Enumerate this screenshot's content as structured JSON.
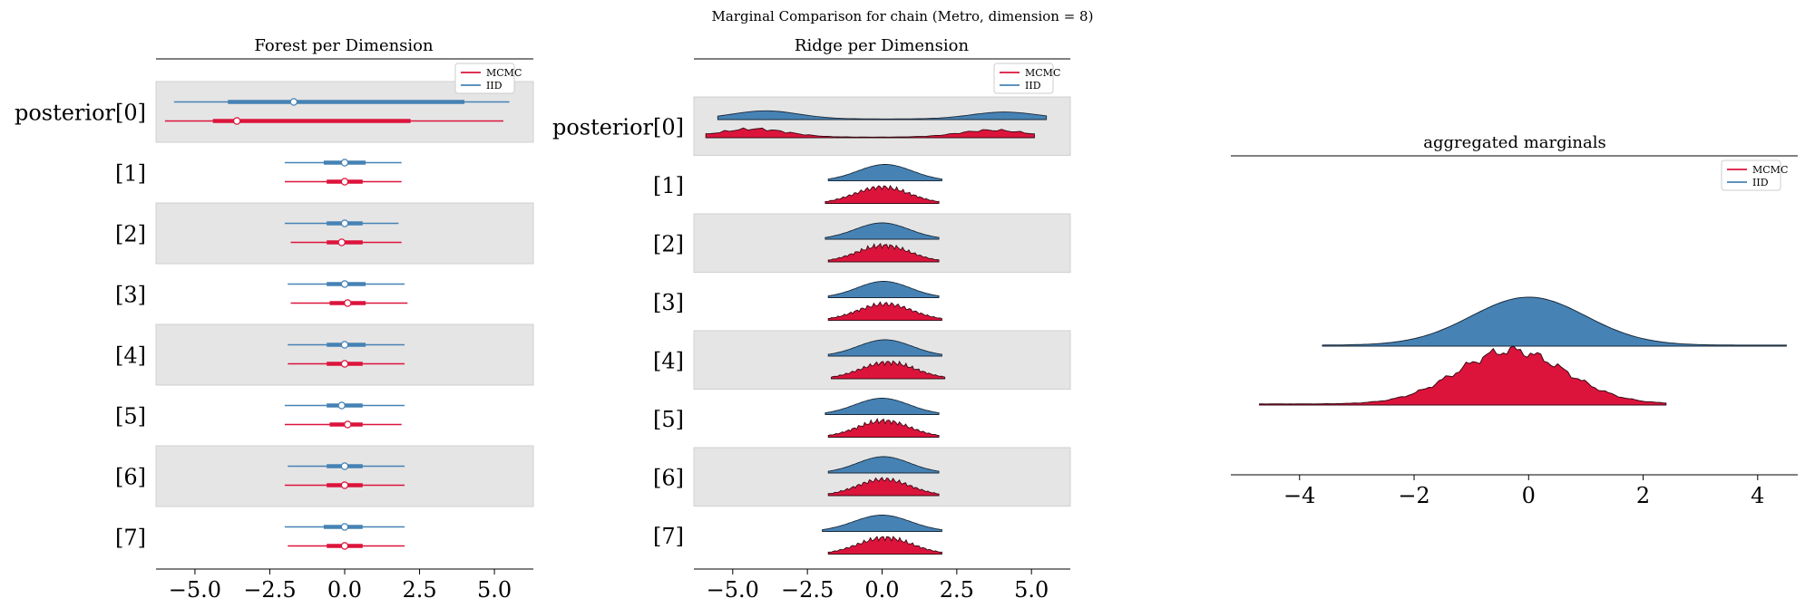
{
  "suptitle": "Marginal Comparison for chain (Metro, dimension = 8)",
  "colors": {
    "mcmc": "#dc143c",
    "iid": "#4682b4",
    "band": "#e5e5e5"
  },
  "legend": {
    "mcmc_label": "MCMC",
    "iid_label": "IID"
  },
  "chart_data": [
    {
      "type": "forest",
      "title": "Forest per Dimension",
      "xlim": [
        -6.3,
        6.3
      ],
      "xticks": [
        -5.0,
        -2.5,
        0.0,
        2.5,
        5.0
      ],
      "xtick_labels": [
        "−5.0",
        "−2.5",
        "0.0",
        "2.5",
        "5.0"
      ],
      "row_labels": [
        "posterior[0]",
        "[1]",
        "[2]",
        "[3]",
        "[4]",
        "[5]",
        "[6]",
        "[7]"
      ],
      "legend_position": "top-right",
      "series": [
        {
          "name": "IID",
          "rows": [
            {
              "hdi94": [
                -5.7,
                5.5
              ],
              "hdi50": [
                -3.9,
                4.0
              ],
              "mean": -1.7
            },
            {
              "hdi94": [
                -2.0,
                1.9
              ],
              "hdi50": [
                -0.7,
                0.7
              ],
              "mean": 0.0
            },
            {
              "hdi94": [
                -2.0,
                1.8
              ],
              "hdi50": [
                -0.6,
                0.6
              ],
              "mean": 0.0
            },
            {
              "hdi94": [
                -1.9,
                2.0
              ],
              "hdi50": [
                -0.6,
                0.7
              ],
              "mean": 0.0
            },
            {
              "hdi94": [
                -1.9,
                2.0
              ],
              "hdi50": [
                -0.6,
                0.7
              ],
              "mean": 0.0
            },
            {
              "hdi94": [
                -2.0,
                2.0
              ],
              "hdi50": [
                -0.6,
                0.6
              ],
              "mean": -0.1
            },
            {
              "hdi94": [
                -1.9,
                2.0
              ],
              "hdi50": [
                -0.6,
                0.6
              ],
              "mean": 0.0
            },
            {
              "hdi94": [
                -2.0,
                2.0
              ],
              "hdi50": [
                -0.7,
                0.6
              ],
              "mean": 0.0
            }
          ]
        },
        {
          "name": "MCMC",
          "rows": [
            {
              "hdi94": [
                -6.0,
                5.3
              ],
              "hdi50": [
                -4.4,
                2.2
              ],
              "mean": -3.6
            },
            {
              "hdi94": [
                -2.0,
                1.9
              ],
              "hdi50": [
                -0.6,
                0.6
              ],
              "mean": 0.0
            },
            {
              "hdi94": [
                -1.8,
                1.9
              ],
              "hdi50": [
                -0.6,
                0.6
              ],
              "mean": -0.1
            },
            {
              "hdi94": [
                -1.8,
                2.1
              ],
              "hdi50": [
                -0.5,
                0.7
              ],
              "mean": 0.1
            },
            {
              "hdi94": [
                -1.9,
                2.0
              ],
              "hdi50": [
                -0.6,
                0.6
              ],
              "mean": 0.0
            },
            {
              "hdi94": [
                -2.0,
                1.9
              ],
              "hdi50": [
                -0.5,
                0.6
              ],
              "mean": 0.1
            },
            {
              "hdi94": [
                -2.0,
                2.0
              ],
              "hdi50": [
                -0.6,
                0.6
              ],
              "mean": 0.0
            },
            {
              "hdi94": [
                -1.9,
                2.0
              ],
              "hdi50": [
                -0.6,
                0.6
              ],
              "mean": 0.0
            }
          ]
        }
      ]
    },
    {
      "type": "ridge",
      "title": "Ridge per Dimension",
      "xlim": [
        -6.3,
        6.3
      ],
      "xticks": [
        -5.0,
        -2.5,
        0.0,
        2.5,
        5.0
      ],
      "xtick_labels": [
        "−5.0",
        "−2.5",
        "0.0",
        "2.5",
        "5.0"
      ],
      "row_labels": [
        "posterior[0]",
        "[1]",
        "[2]",
        "[3]",
        "[4]",
        "[5]",
        "[6]",
        "[7]"
      ],
      "legend_position": "top-right",
      "series": [
        {
          "name": "IID",
          "ranges": [
            [
              -5.5,
              5.5
            ],
            [
              -1.8,
              2.0
            ],
            [
              -1.9,
              1.9
            ],
            [
              -1.8,
              1.9
            ],
            [
              -1.8,
              2.0
            ],
            [
              -1.9,
              1.9
            ],
            [
              -1.8,
              1.9
            ],
            [
              -2.0,
              2.0
            ]
          ]
        },
        {
          "name": "MCMC",
          "ranges": [
            [
              -5.9,
              5.1
            ],
            [
              -1.9,
              1.9
            ],
            [
              -1.8,
              1.9
            ],
            [
              -1.8,
              2.0
            ],
            [
              -1.7,
              2.1
            ],
            [
              -1.8,
              1.9
            ],
            [
              -1.8,
              1.9
            ],
            [
              -1.8,
              2.0
            ]
          ]
        }
      ]
    },
    {
      "type": "ridge",
      "title": "aggregated marginals",
      "xlim": [
        -5.2,
        4.7
      ],
      "xticks": [
        -4,
        -2,
        0,
        2,
        4
      ],
      "xtick_labels": [
        "−4",
        "−2",
        "0",
        "2",
        "4"
      ],
      "legend_position": "top-right",
      "series": [
        {
          "name": "IID",
          "range": [
            -3.6,
            4.5
          ],
          "mode": 0.0
        },
        {
          "name": "MCMC",
          "range": [
            -4.7,
            2.4
          ],
          "mode": -0.3
        }
      ]
    }
  ]
}
